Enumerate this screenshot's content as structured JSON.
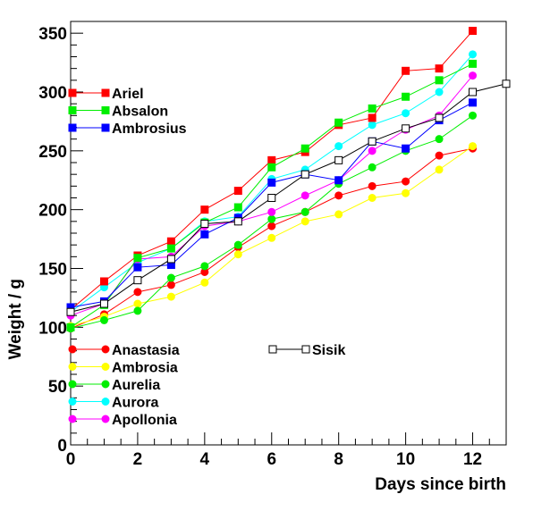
{
  "chart_data": {
    "type": "line",
    "title": "",
    "xlabel": "Days since birth",
    "ylabel": "Weight / g",
    "xlim": [
      0,
      13
    ],
    "ylim": [
      0,
      360
    ],
    "x_ticks": [
      0,
      2,
      4,
      6,
      8,
      10,
      12
    ],
    "x_tick_labels": [
      "0",
      "2",
      "4",
      "6",
      "8",
      "10",
      "12"
    ],
    "y_ticks": [
      0,
      50,
      100,
      150,
      200,
      250,
      300,
      350
    ],
    "y_tick_labels": [
      "0",
      "50",
      "100",
      "150",
      "200",
      "250",
      "300",
      "350"
    ],
    "grid": false,
    "legend_placement": "left",
    "series": [
      {
        "name": "Ariel",
        "color": "#ff0000",
        "marker": "square",
        "x": [
          0,
          1,
          2,
          3,
          4,
          5,
          6,
          7,
          8,
          9,
          10,
          11,
          12
        ],
        "y": [
          115,
          139,
          161,
          173,
          200,
          216,
          242,
          249,
          272,
          278,
          318,
          320,
          352
        ]
      },
      {
        "name": "Absalon",
        "color": "#00ee00",
        "marker": "square",
        "x": [
          0,
          1,
          2,
          3,
          4,
          5,
          6,
          7,
          8,
          9,
          10,
          11,
          12
        ],
        "y": [
          100,
          119,
          159,
          167,
          189,
          202,
          236,
          252,
          274,
          286,
          296,
          310,
          324
        ]
      },
      {
        "name": "Ambrosius",
        "color": "#0000ff",
        "marker": "square",
        "x": [
          0,
          1,
          2,
          3,
          4,
          5,
          6,
          7,
          8,
          9,
          10,
          11,
          12
        ],
        "y": [
          117,
          122,
          151,
          153,
          179,
          193,
          223,
          230,
          225,
          258,
          252,
          276,
          291
        ]
      },
      {
        "name": "Anastasia",
        "color": "#ff0000",
        "marker": "circle",
        "x": [
          0,
          1,
          2,
          3,
          4,
          5,
          6,
          7,
          8,
          9,
          10,
          11,
          12
        ],
        "y": [
          99,
          111,
          130,
          136,
          147,
          168,
          186,
          198,
          212,
          220,
          224,
          246,
          252
        ]
      },
      {
        "name": "Ambrosia",
        "color": "#ffff00",
        "marker": "circle",
        "x": [
          0,
          1,
          2,
          3,
          4,
          5,
          6,
          7,
          8,
          9,
          10,
          11,
          12
        ],
        "y": [
          101,
          109,
          120,
          126,
          138,
          162,
          176,
          190,
          196,
          210,
          214,
          234,
          254
        ]
      },
      {
        "name": "Aurelia",
        "color": "#00ee00",
        "marker": "circle",
        "x": [
          0,
          1,
          2,
          3,
          4,
          5,
          6,
          7,
          8,
          9,
          10,
          11,
          12
        ],
        "y": [
          99,
          106,
          114,
          142,
          152,
          170,
          192,
          198,
          222,
          236,
          250,
          260,
          280
        ]
      },
      {
        "name": "Aurora",
        "color": "#00ffff",
        "marker": "circle",
        "x": [
          0,
          1,
          2,
          3,
          4,
          5,
          6,
          7,
          8,
          9,
          10,
          11,
          12
        ],
        "y": [
          113,
          134,
          155,
          167,
          190,
          194,
          226,
          234,
          254,
          272,
          282,
          300,
          332
        ]
      },
      {
        "name": "Apollonia",
        "color": "#ff00ff",
        "marker": "circle",
        "x": [
          0,
          1,
          2,
          3,
          4,
          5,
          6,
          7,
          8,
          9,
          10,
          11,
          12
        ],
        "y": [
          110,
          120,
          158,
          160,
          186,
          190,
          198,
          212,
          225,
          250,
          268,
          280,
          314
        ]
      },
      {
        "name": "Sisik",
        "color": "#000000",
        "marker": "open-square",
        "x": [
          0,
          1,
          2,
          3,
          4,
          5,
          6,
          7,
          8,
          9,
          10,
          11,
          12,
          13
        ],
        "y": [
          113,
          120,
          140,
          158,
          188,
          190,
          210,
          230,
          242,
          258,
          269,
          278,
          300,
          307
        ]
      }
    ],
    "legend_groups": [
      {
        "entries": [
          "Ariel",
          "Absalon",
          "Ambrosius"
        ]
      },
      {
        "entries": [
          "Anastasia",
          "Ambrosia",
          "Aurelia",
          "Aurora",
          "Apollonia"
        ]
      },
      {
        "entries": [
          "Sisik"
        ]
      }
    ]
  }
}
